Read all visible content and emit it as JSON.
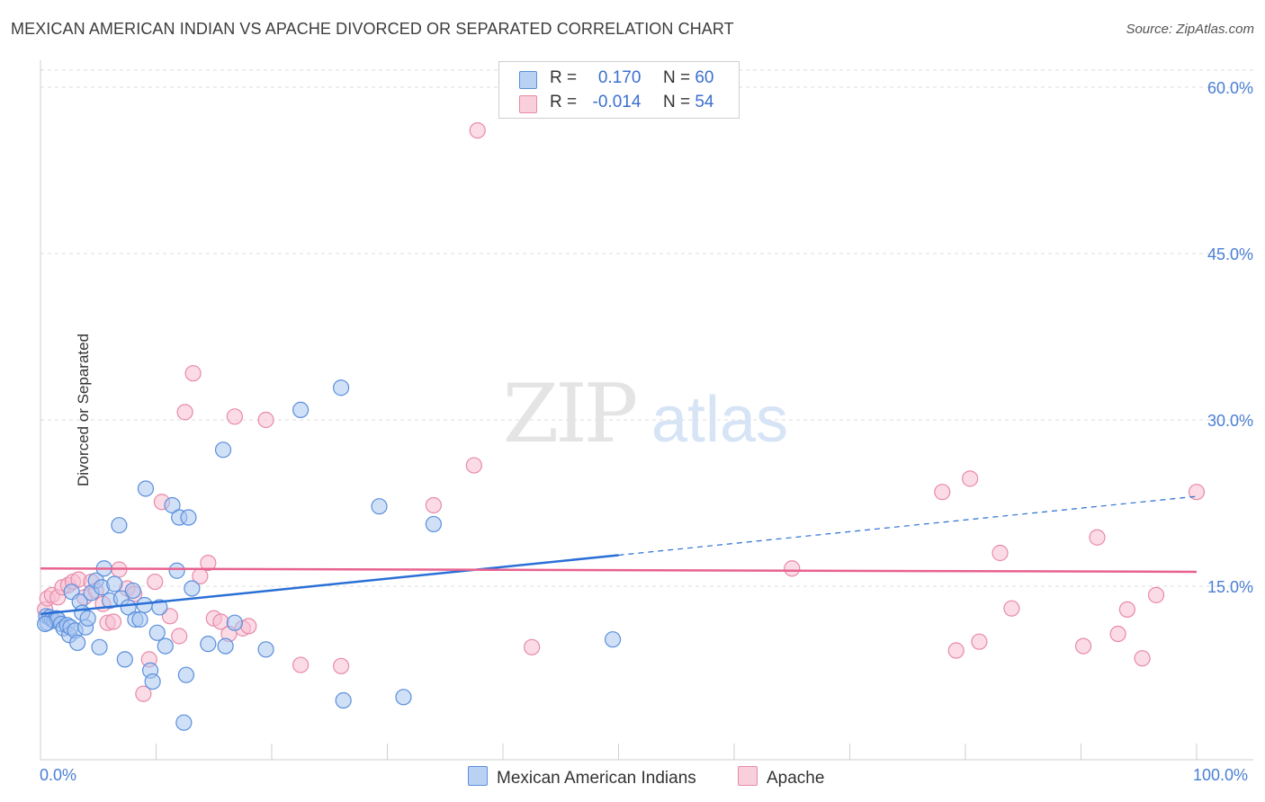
{
  "title": "MEXICAN AMERICAN INDIAN VS APACHE DIVORCED OR SEPARATED CORRELATION CHART",
  "source": "Source: ZipAtlas.com",
  "watermark": {
    "zip": "ZIP",
    "atlas": "atlas"
  },
  "legend": {
    "series1": {
      "r_label": "R =",
      "r_value": "0.170",
      "n_label": "N =",
      "n_value": "60"
    },
    "series2": {
      "r_label": "R =",
      "r_value": "-0.014",
      "n_label": "N =",
      "n_value": "54"
    }
  },
  "bottom_legend": {
    "series1": "Mexican American Indians",
    "series2": "Apache"
  },
  "x_tick_min": "0.0%",
  "x_tick_max": "100.0%",
  "colors": {
    "blue_fill": "#a9c6f0",
    "blue_stroke": "#5b8fdc",
    "blue_line": "#2a6fd6",
    "pink_fill": "#f7c0d2",
    "pink_stroke": "#e88aa8",
    "pink_line": "#e8628f",
    "axis_text": "#4a7fd4",
    "grid": "#dcdcdc"
  },
  "chart_data": {
    "type": "scatter",
    "title": "MEXICAN AMERICAN INDIAN VS APACHE DIVORCED OR SEPARATED CORRELATION CHART",
    "xlabel": "",
    "ylabel": "Divorced or Separated",
    "xlim": [
      0,
      100
    ],
    "ylim": [
      0,
      63
    ],
    "yticks": [
      15,
      30,
      45,
      60
    ],
    "ytick_labels": [
      "15.0%",
      "30.0%",
      "45.0%",
      "60.0%"
    ],
    "grid": true,
    "legend_position": "top-center",
    "series": [
      {
        "name": "Mexican American Indians",
        "r": 0.17,
        "n": 60,
        "trend": {
          "x": [
            0,
            50
          ],
          "y": [
            12.5,
            17.8
          ],
          "dashed_to": [
            100,
            23.1
          ]
        },
        "points": [
          [
            0.5,
            12.3
          ],
          [
            0.6,
            11.7
          ],
          [
            0.8,
            12.2
          ],
          [
            1.0,
            12.0
          ],
          [
            1.2,
            11.9
          ],
          [
            1.4,
            12.1
          ],
          [
            1.5,
            12.0
          ],
          [
            1.8,
            11.6
          ],
          [
            2.0,
            11.2
          ],
          [
            2.3,
            11.5
          ],
          [
            2.5,
            10.6
          ],
          [
            2.6,
            11.3
          ],
          [
            2.7,
            14.5
          ],
          [
            3.0,
            11.0
          ],
          [
            3.2,
            9.9
          ],
          [
            3.4,
            13.6
          ],
          [
            3.6,
            12.6
          ],
          [
            3.9,
            11.3
          ],
          [
            4.1,
            12.1
          ],
          [
            4.4,
            14.4
          ],
          [
            4.8,
            15.5
          ],
          [
            5.1,
            9.5
          ],
          [
            5.3,
            14.9
          ],
          [
            5.5,
            16.6
          ],
          [
            6.0,
            13.7
          ],
          [
            6.4,
            15.2
          ],
          [
            6.8,
            20.5
          ],
          [
            7.0,
            13.9
          ],
          [
            7.3,
            8.4
          ],
          [
            7.6,
            13.1
          ],
          [
            8.0,
            14.6
          ],
          [
            8.2,
            12.0
          ],
          [
            8.6,
            12.0
          ],
          [
            9.0,
            13.3
          ],
          [
            9.1,
            23.8
          ],
          [
            9.5,
            7.4
          ],
          [
            9.7,
            6.4
          ],
          [
            10.1,
            10.8
          ],
          [
            10.3,
            13.1
          ],
          [
            10.8,
            9.6
          ],
          [
            11.4,
            22.3
          ],
          [
            11.8,
            16.4
          ],
          [
            12.0,
            21.2
          ],
          [
            12.4,
            2.7
          ],
          [
            12.6,
            7.0
          ],
          [
            12.8,
            21.2
          ],
          [
            13.1,
            14.8
          ],
          [
            14.5,
            9.8
          ],
          [
            15.8,
            27.3
          ],
          [
            16.0,
            9.6
          ],
          [
            16.8,
            11.7
          ],
          [
            19.5,
            9.3
          ],
          [
            22.5,
            30.9
          ],
          [
            26.0,
            32.9
          ],
          [
            26.2,
            4.7
          ],
          [
            29.3,
            22.2
          ],
          [
            31.4,
            5.0
          ],
          [
            34.0,
            20.6
          ],
          [
            49.5,
            10.2
          ],
          [
            0.4,
            11.6
          ]
        ]
      },
      {
        "name": "Apache",
        "r": -0.014,
        "n": 54,
        "trend": {
          "x": [
            0,
            100
          ],
          "y": [
            16.6,
            16.3
          ]
        },
        "points": [
          [
            0.4,
            12.9
          ],
          [
            0.6,
            13.9
          ],
          [
            1.0,
            14.2
          ],
          [
            1.5,
            14.0
          ],
          [
            1.9,
            14.9
          ],
          [
            2.4,
            15.1
          ],
          [
            2.8,
            15.4
          ],
          [
            3.3,
            15.6
          ],
          [
            3.8,
            14.0
          ],
          [
            4.4,
            15.4
          ],
          [
            4.8,
            14.6
          ],
          [
            5.4,
            13.4
          ],
          [
            5.8,
            11.7
          ],
          [
            6.3,
            11.8
          ],
          [
            6.8,
            16.5
          ],
          [
            7.5,
            14.8
          ],
          [
            8.1,
            14.3
          ],
          [
            8.9,
            5.3
          ],
          [
            9.4,
            8.4
          ],
          [
            9.9,
            15.4
          ],
          [
            10.5,
            22.6
          ],
          [
            11.2,
            12.3
          ],
          [
            12.0,
            10.5
          ],
          [
            12.5,
            30.7
          ],
          [
            13.2,
            34.2
          ],
          [
            13.8,
            15.9
          ],
          [
            14.5,
            17.1
          ],
          [
            15.0,
            12.1
          ],
          [
            15.6,
            11.8
          ],
          [
            16.3,
            10.7
          ],
          [
            16.8,
            30.3
          ],
          [
            17.5,
            11.2
          ],
          [
            18.0,
            11.4
          ],
          [
            19.5,
            30.0
          ],
          [
            22.5,
            7.9
          ],
          [
            26.0,
            7.8
          ],
          [
            34.0,
            22.3
          ],
          [
            37.8,
            56.1
          ],
          [
            37.5,
            25.9
          ],
          [
            42.5,
            9.5
          ],
          [
            65.0,
            16.6
          ],
          [
            78.0,
            23.5
          ],
          [
            79.2,
            9.2
          ],
          [
            80.4,
            24.7
          ],
          [
            81.2,
            10.0
          ],
          [
            83.0,
            18.0
          ],
          [
            84.0,
            13.0
          ],
          [
            90.2,
            9.6
          ],
          [
            91.4,
            19.4
          ],
          [
            93.2,
            10.7
          ],
          [
            94.0,
            12.9
          ],
          [
            95.3,
            8.5
          ],
          [
            96.5,
            14.2
          ],
          [
            100.0,
            23.5
          ]
        ]
      }
    ]
  }
}
